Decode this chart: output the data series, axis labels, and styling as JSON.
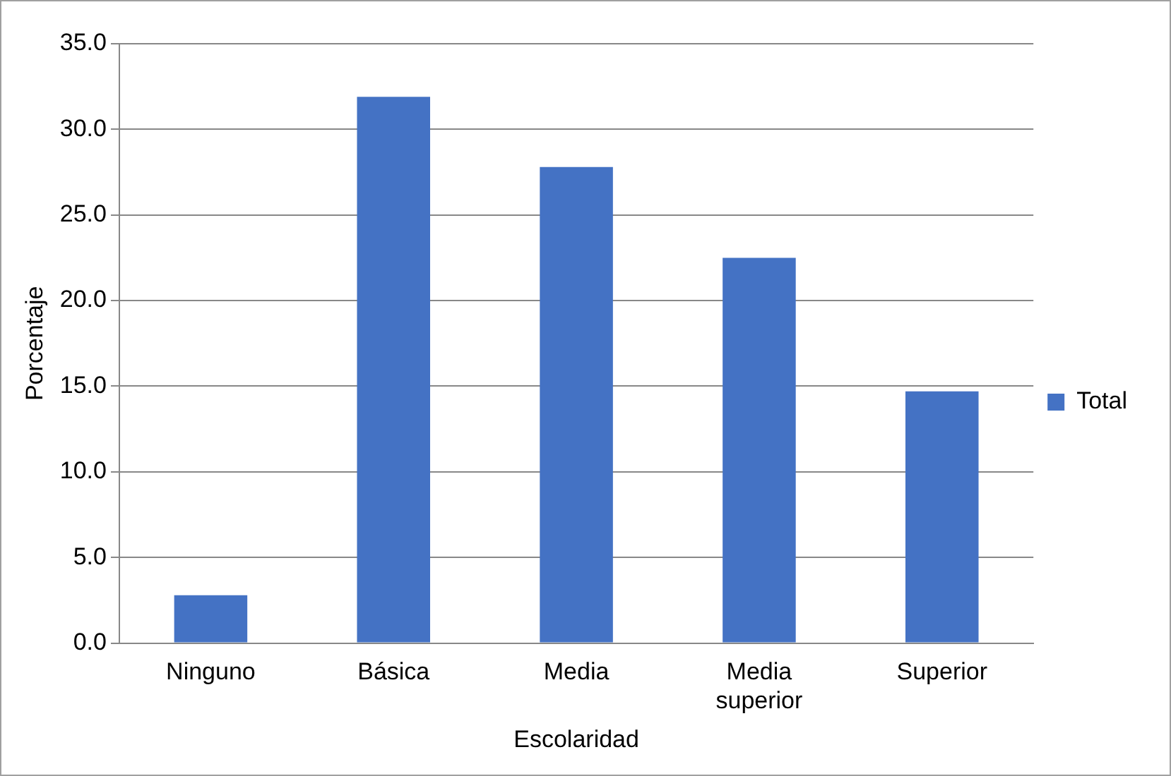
{
  "chart_data": {
    "type": "bar",
    "xlabel": "Escolaridad",
    "ylabel": "Porcentaje",
    "categories": [
      "Ninguno",
      "Básica",
      "Media",
      "Media superior",
      "Superior"
    ],
    "series": [
      {
        "name": "Total",
        "color": "#4472c4",
        "values": [
          2.8,
          31.9,
          27.8,
          22.5,
          14.7
        ]
      }
    ],
    "ylim": [
      0,
      35
    ],
    "yticks": [
      {
        "value": 0,
        "label": "0.0"
      },
      {
        "value": 5,
        "label": "5.0"
      },
      {
        "value": 10,
        "label": "10.0"
      },
      {
        "value": 15,
        "label": "15.0"
      },
      {
        "value": 20,
        "label": "20.0"
      },
      {
        "value": 25,
        "label": "25.0"
      },
      {
        "value": 30,
        "label": "30.0"
      },
      {
        "value": 35,
        "label": "35.0"
      }
    ],
    "grid": "y",
    "legend": "right"
  }
}
